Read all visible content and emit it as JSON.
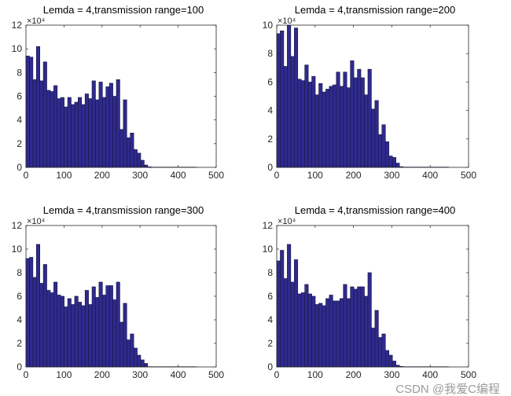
{
  "colors": {
    "bar_fill": "#2f2a8e",
    "bar_edge": "#1a1640",
    "axis": "#262626"
  },
  "watermark": "CSDN @我爱C编程",
  "chart_data": [
    {
      "type": "bar",
      "title": "Lemda = 4,transmission range=100",
      "exponent": "×10⁴",
      "xlim": [
        0,
        500
      ],
      "ylim": [
        0,
        12
      ],
      "xticks": [
        "0",
        "100",
        "200",
        "300",
        "400",
        "500"
      ],
      "yticks": [
        "0",
        "2",
        "4",
        "6",
        "8",
        "10",
        "12"
      ],
      "bin_width": 9.14,
      "values": [
        9.4,
        9.3,
        7.4,
        10.2,
        7.3,
        8.9,
        6.5,
        6.4,
        6.9,
        5.8,
        5.9,
        5.1,
        5.9,
        5.3,
        5.5,
        5.9,
        5.3,
        6.2,
        5.8,
        7.3,
        5.7,
        7.2,
        5.9,
        6.8,
        7.1,
        6.0,
        7.4,
        3.2,
        5.7,
        2.5,
        2.9,
        1.5,
        1.2,
        0.6,
        0.2,
        0.05,
        0.02,
        0.02,
        0.02,
        0.02,
        0.02,
        0.02,
        0.02,
        0.02,
        0.02,
        0.02,
        0.02,
        0.02,
        0.02
      ]
    },
    {
      "type": "bar",
      "title": "Lemda = 4,transmission range=200",
      "exponent": "×10⁴",
      "xlim": [
        0,
        500
      ],
      "ylim": [
        0,
        10
      ],
      "xticks": [
        "0",
        "100",
        "200",
        "300",
        "400",
        "500"
      ],
      "yticks": [
        "0",
        "2",
        "4",
        "6",
        "8",
        "10"
      ],
      "bin_width": 9.14,
      "values": [
        9.4,
        9.6,
        7.1,
        10.0,
        7.8,
        9.8,
        6.2,
        6.1,
        7.2,
        6.0,
        6.4,
        5.1,
        5.9,
        5.3,
        5.5,
        5.7,
        5.8,
        6.7,
        5.7,
        6.7,
        5.6,
        7.5,
        6.3,
        6.9,
        6.3,
        5.1,
        6.9,
        4.1,
        4.7,
        2.3,
        3.0,
        1.8,
        0.8,
        0.7,
        0.3,
        0.05,
        0.02,
        0.02,
        0.02,
        0.02,
        0.02,
        0.02,
        0.02,
        0.02,
        0.02,
        0.02,
        0.02,
        0.02,
        0.02
      ]
    },
    {
      "type": "bar",
      "title": "Lemda = 4,transmission range=300",
      "exponent": "×10⁴",
      "xlim": [
        0,
        500
      ],
      "ylim": [
        0,
        12
      ],
      "xticks": [
        "0",
        "100",
        "200",
        "300",
        "400",
        "500"
      ],
      "yticks": [
        "0",
        "2",
        "4",
        "6",
        "8",
        "10",
        "12"
      ],
      "bin_width": 9.14,
      "values": [
        9.2,
        9.3,
        7.6,
        10.4,
        7.1,
        8.7,
        6.5,
        6.3,
        7.2,
        6.1,
        6.0,
        5.1,
        5.8,
        5.3,
        6.0,
        5.5,
        5.2,
        6.5,
        5.3,
        6.8,
        5.9,
        7.2,
        6.1,
        6.9,
        6.9,
        5.7,
        7.2,
        3.8,
        5.4,
        2.3,
        2.8,
        1.6,
        1.0,
        0.6,
        0.3,
        0.02,
        0.02,
        0.02,
        0.02,
        0.02,
        0.02,
        0.02,
        0.02,
        0.02,
        0.02,
        0.02,
        0.02,
        0.02,
        0.02
      ]
    },
    {
      "type": "bar",
      "title": "Lemda = 4,transmission range=400",
      "exponent": "×10⁴",
      "xlim": [
        0,
        500
      ],
      "ylim": [
        0,
        12
      ],
      "xticks": [
        "0",
        "100",
        "200",
        "300",
        "400",
        "500"
      ],
      "yticks": [
        "0",
        "2",
        "4",
        "6",
        "8",
        "10",
        "12"
      ],
      "bin_width": 9.14,
      "values": [
        9.0,
        9.9,
        7.5,
        10.4,
        7.2,
        9.1,
        6.2,
        6.3,
        7.0,
        6.2,
        6.0,
        5.3,
        5.4,
        5.2,
        5.8,
        6.1,
        5.6,
        5.6,
        5.8,
        7.0,
        5.8,
        6.8,
        6.6,
        6.8,
        6.8,
        6.0,
        8.0,
        3.3,
        4.8,
        2.5,
        2.8,
        1.4,
        1.0,
        0.5,
        0.15,
        0.05,
        0.02,
        0.02,
        0.02,
        0.02,
        0.02,
        0.02,
        0.02,
        0.02,
        0.02,
        0.02,
        0.02,
        0.02,
        0.02
      ]
    }
  ]
}
